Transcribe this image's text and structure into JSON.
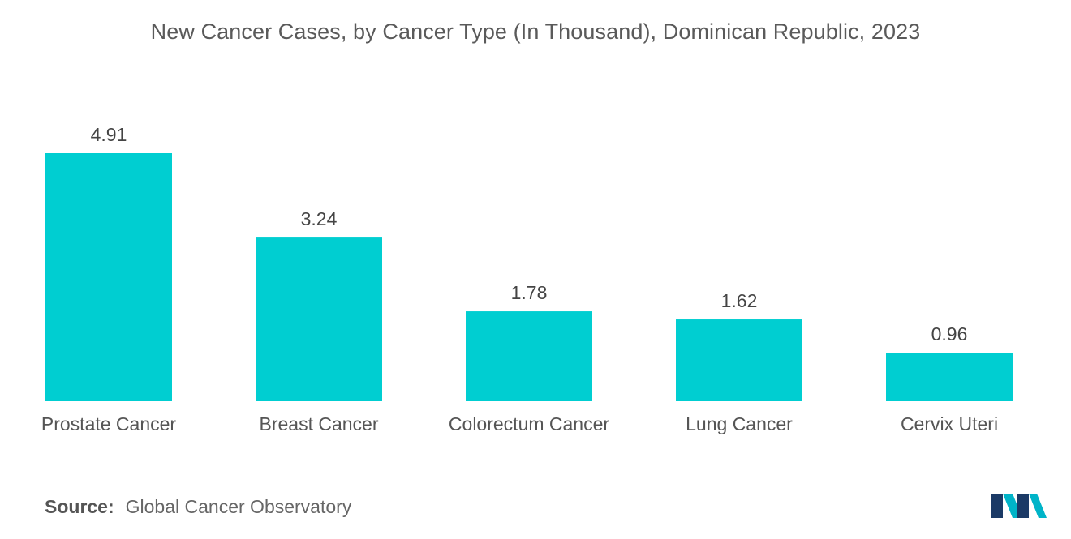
{
  "chart_data": {
    "type": "bar",
    "title": "New Cancer Cases, by Cancer Type (In Thousand), Dominican Republic, 2023",
    "categories": [
      "Prostate Cancer",
      "Breast Cancer",
      "Colorectum Cancer",
      "Lung Cancer",
      "Cervix Uteri"
    ],
    "values": [
      4.91,
      3.24,
      1.78,
      1.62,
      0.96
    ],
    "value_labels": [
      "4.91",
      "3.24",
      "1.78",
      "1.62",
      "0.96"
    ],
    "xlabel": "",
    "ylabel": "",
    "ylim": [
      0,
      4.91
    ],
    "grid": false,
    "bar_color": "#00CED1"
  },
  "source": {
    "label": "Source:",
    "text": "Global Cancer Observatory"
  },
  "logo": {
    "icon": "mordor-intelligence-logo-icon",
    "colors": [
      "#1b3a66",
      "#00b4c8"
    ]
  }
}
